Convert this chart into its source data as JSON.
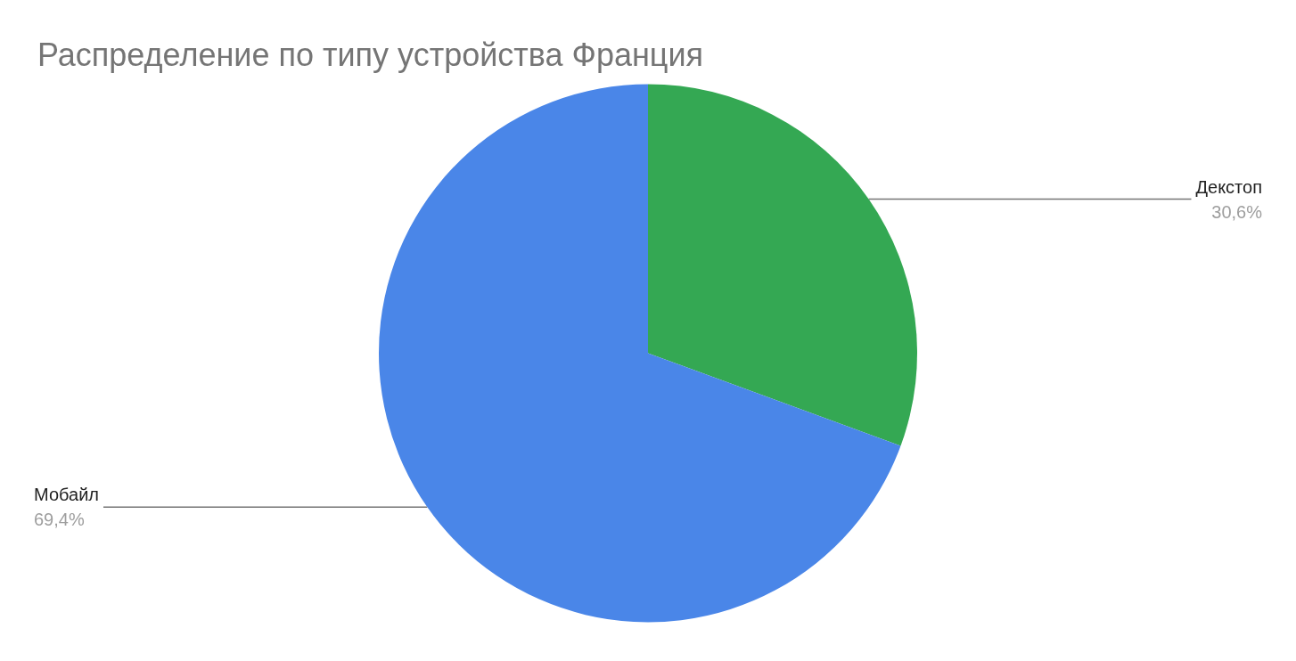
{
  "chart_data": {
    "type": "pie",
    "title": "Распределение по типу устройства Франция",
    "categories": [
      "Декстоп",
      "Мобайл"
    ],
    "values": [
      30.6,
      69.4
    ],
    "colors": [
      "#34a853",
      "#4a86e8"
    ],
    "value_labels": [
      "30,6%",
      "69,4%"
    ],
    "legend": false
  }
}
